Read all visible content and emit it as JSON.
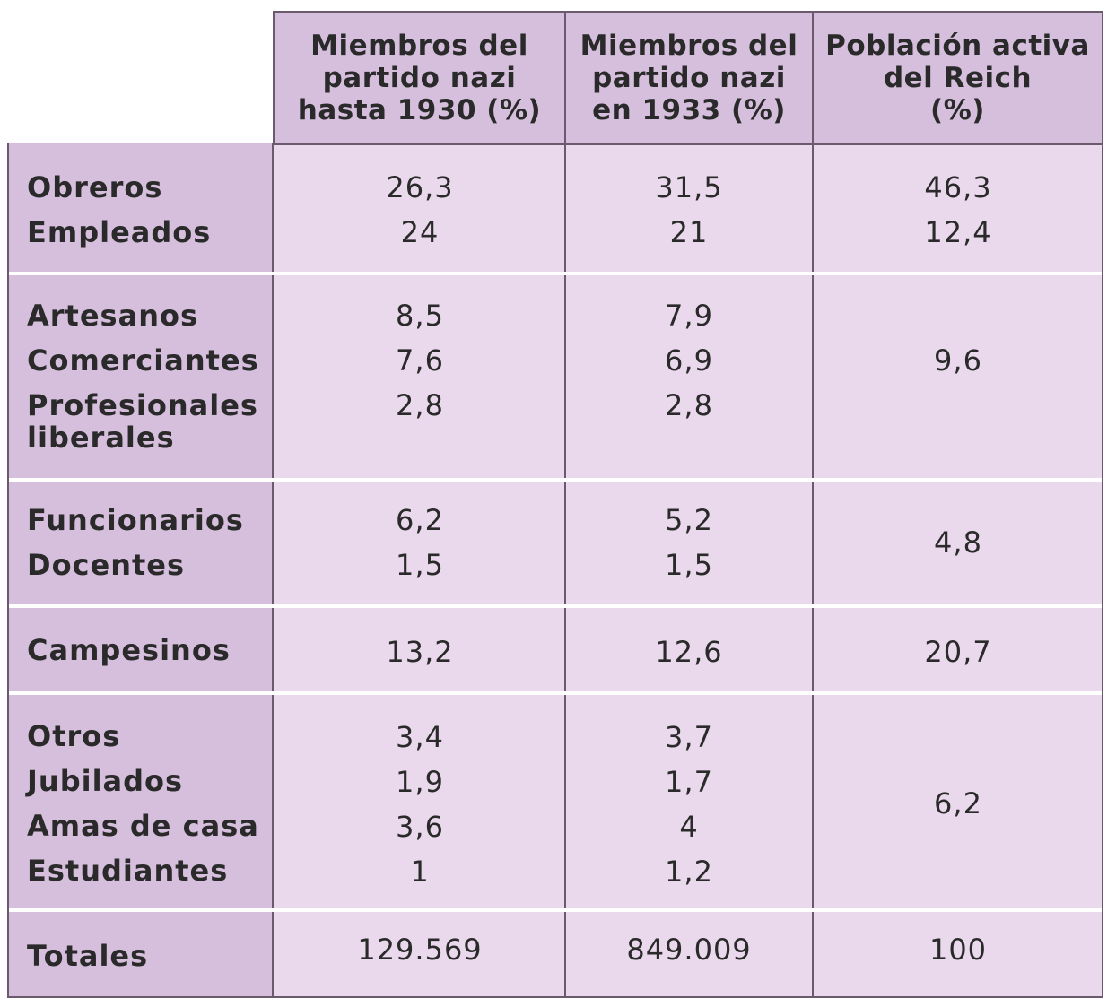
{
  "headers": [
    "Miembros del\npartido nazi\nhasta 1930 (%)",
    "Miembros del\npartido nazi\nen 1933 (%)",
    "Población activa\ndel Reich\n(%)"
  ],
  "groups": [
    {
      "labels": [
        "Obreros",
        "Empleados"
      ],
      "col1": [
        "26,3",
        "24"
      ],
      "col2": [
        "31,5",
        "21"
      ],
      "col3": [
        "46,3",
        "12,4"
      ]
    },
    {
      "labels": [
        "Artesanos",
        "Comerciantes",
        "Profesionales",
        "liberales"
      ],
      "col1": [
        "8,5",
        "7,6",
        "2,8"
      ],
      "col2": [
        "7,9",
        "6,9",
        "2,8"
      ],
      "col3": [
        "9,6"
      ]
    },
    {
      "labels": [
        "Funcionarios",
        "Docentes"
      ],
      "col1": [
        "6,2",
        "1,5"
      ],
      "col2": [
        "5,2",
        "1,5"
      ],
      "col3": [
        "4,8"
      ]
    },
    {
      "labels": [
        "Campesinos"
      ],
      "col1": [
        "13,2"
      ],
      "col2": [
        "12,6"
      ],
      "col3": [
        "20,7"
      ]
    },
    {
      "labels": [
        "Otros",
        "Jubilados",
        "Amas de casa",
        "Estudiantes"
      ],
      "col1": [
        "3,4",
        "1,9",
        "3,6",
        "1"
      ],
      "col2": [
        "3,7",
        "1,7",
        "4",
        "1,2"
      ],
      "col3": [
        "6,2"
      ]
    },
    {
      "labels": [
        "Totales"
      ],
      "col1": [
        "129.569"
      ],
      "col2": [
        "849.009"
      ],
      "col3": [
        "100"
      ]
    }
  ]
}
